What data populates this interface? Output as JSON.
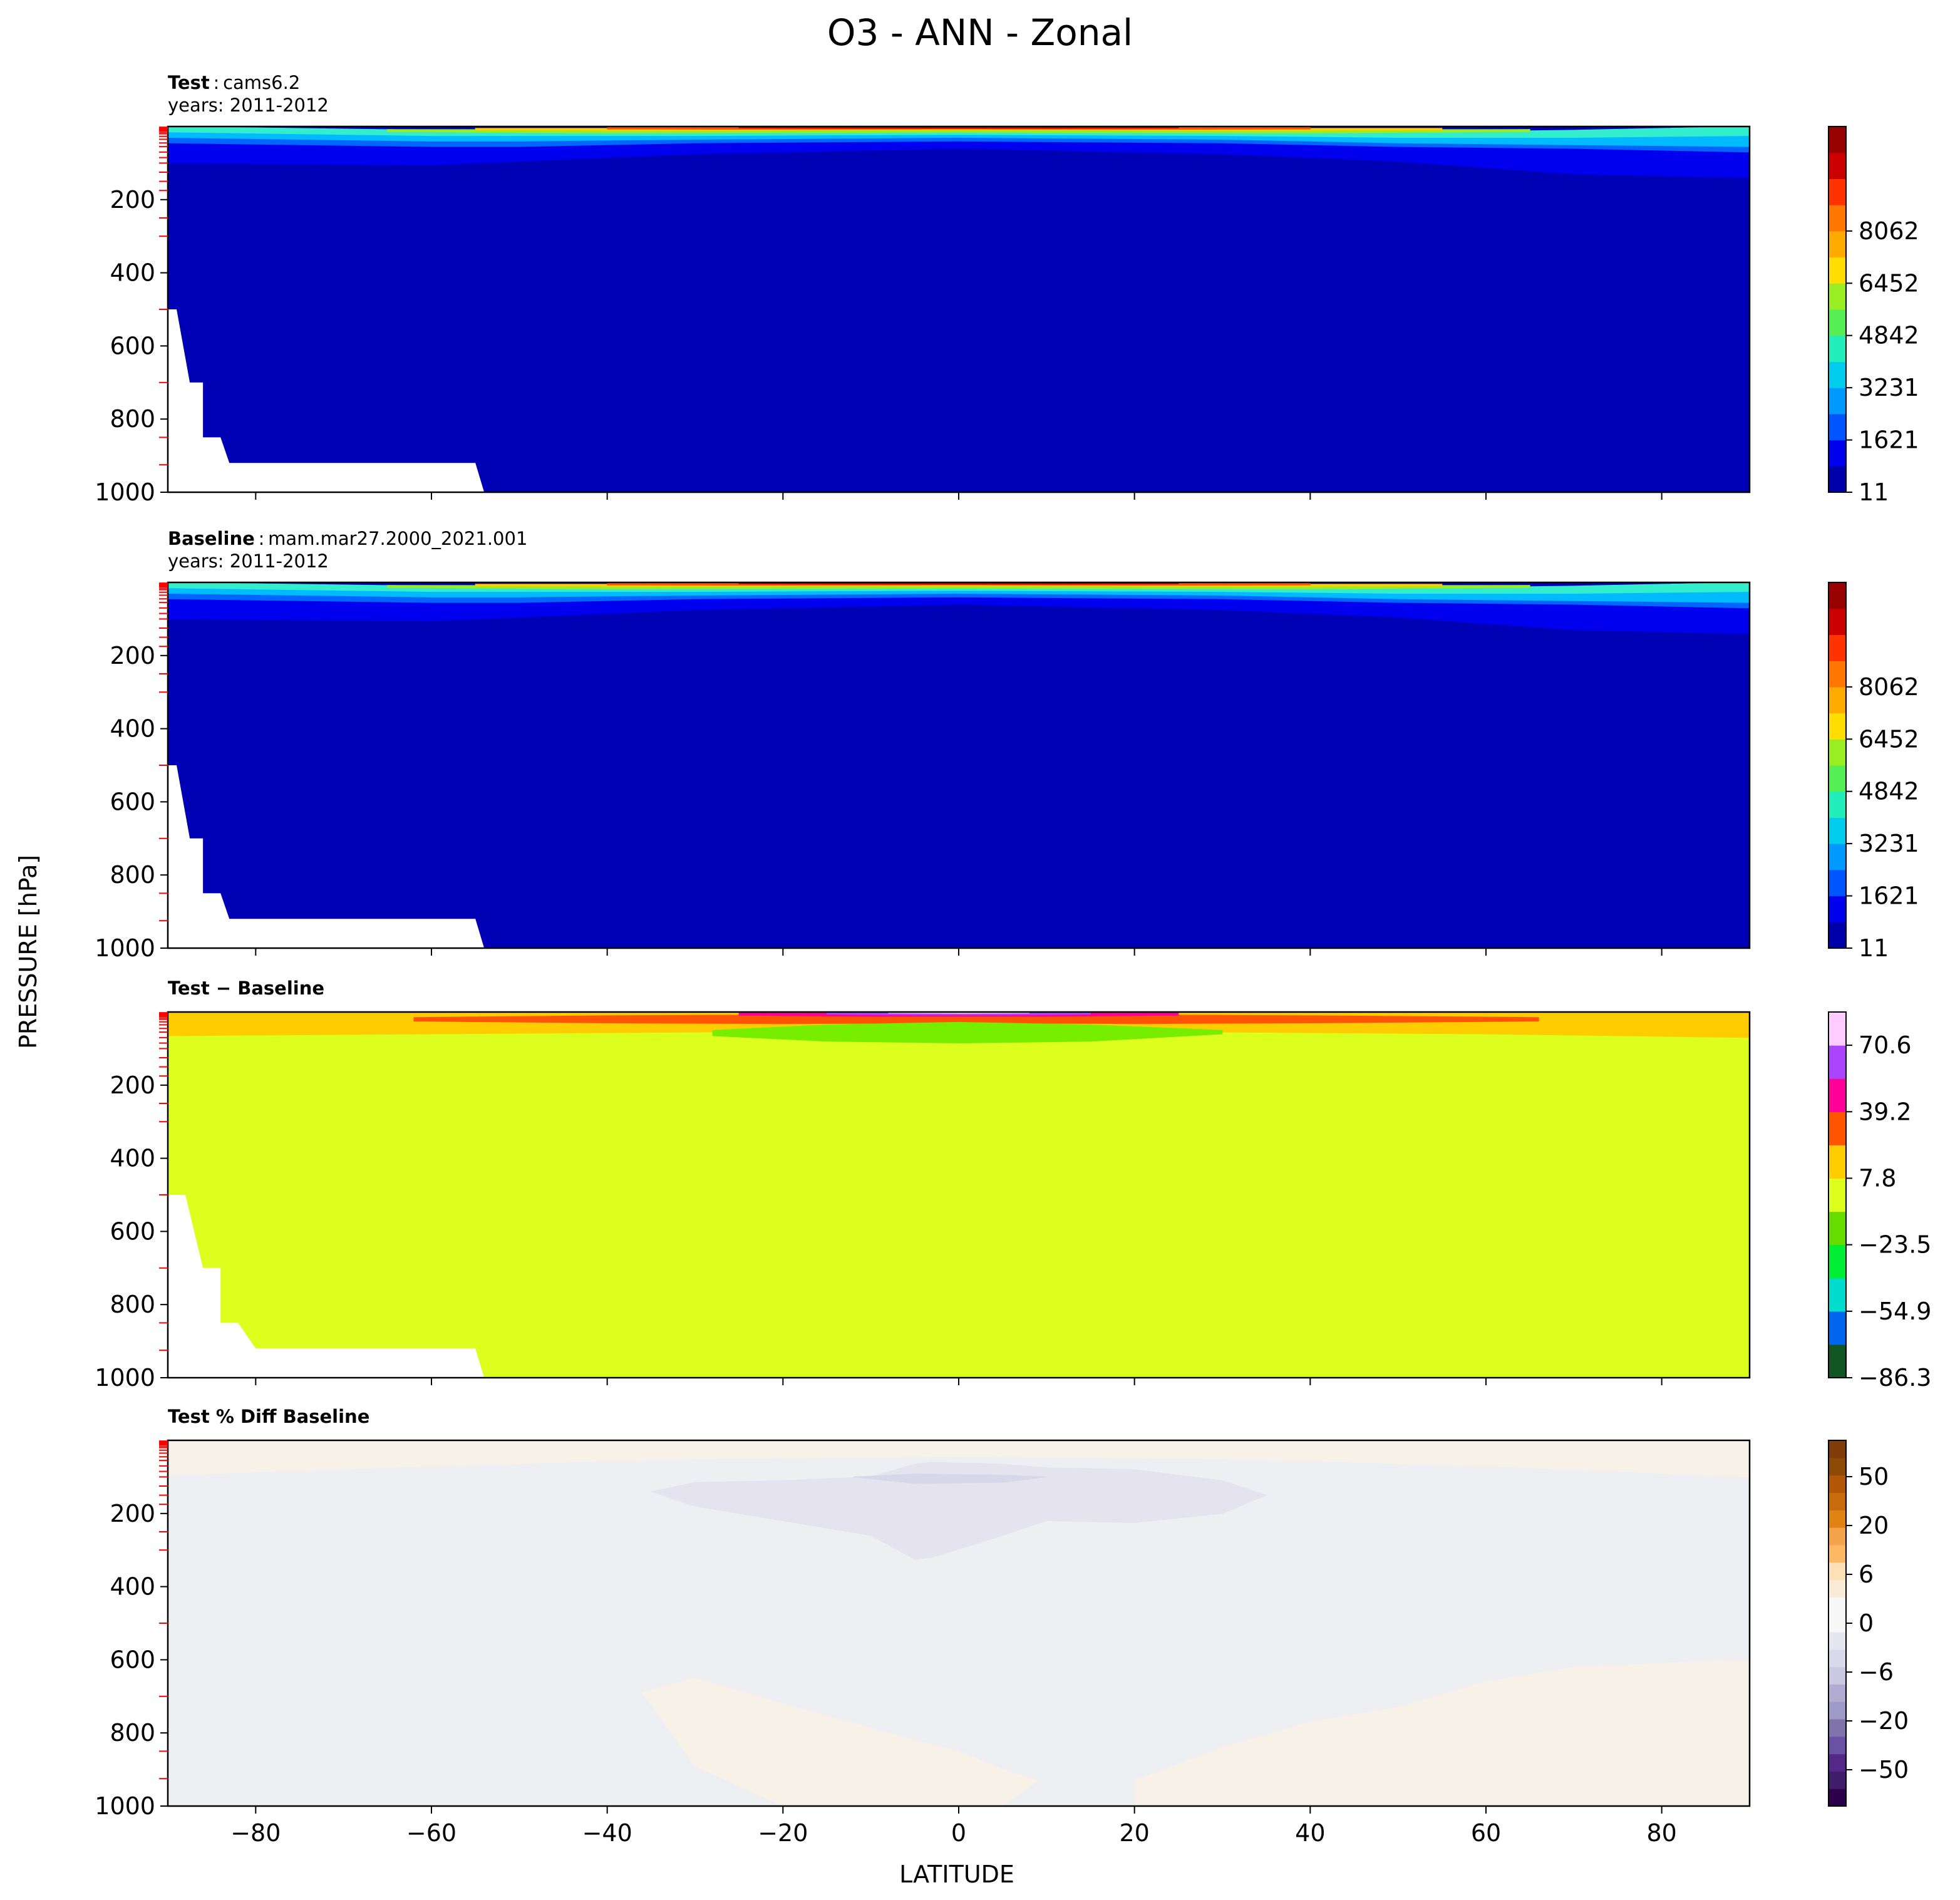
{
  "figure": {
    "title": "O3 - ANN - Zonal",
    "xlabel": "LATITUDE",
    "ylabel": "PRESSURE [hPa]"
  },
  "panels": [
    {
      "title_bold": "Test",
      "title_sep": ":",
      "title_rest": "cams6.2",
      "subtitle": "years: 2011-2012"
    },
    {
      "title_bold": "Baseline",
      "title_sep": ":",
      "title_rest": "mam.mar27.2000_2021.001",
      "subtitle": "years: 2011-2012"
    },
    {
      "title_bold": "Test − Baseline",
      "title_sep": "",
      "title_rest": "",
      "subtitle": ""
    },
    {
      "title_bold": "Test % Diff Baseline",
      "title_sep": "",
      "title_rest": "",
      "subtitle": ""
    }
  ],
  "chart_data": [
    {
      "type": "heatmap",
      "panel": "Test",
      "x_range": [
        -90,
        90
      ],
      "y_range": [
        1000,
        0
      ],
      "x_ticks": [
        -80,
        -60,
        -40,
        -20,
        0,
        20,
        40,
        60,
        80
      ],
      "y_ticks": [
        200,
        400,
        600,
        800,
        1000
      ],
      "colorbar_ticks": [
        "11",
        "1621",
        "3231",
        "4842",
        "6452",
        "8062"
      ],
      "colorbar_colors": [
        "#0000aa",
        "#0000ee",
        "#0055ff",
        "#0099ff",
        "#00ccee",
        "#22eebb",
        "#55ee55",
        "#99ee22",
        "#ffdd00",
        "#ffaa00",
        "#ff7700",
        "#ff3300",
        "#cc0000",
        "#990000"
      ],
      "levels": [
        {
          "color": "#0000b4",
          "lat": [
            -90,
            90
          ],
          "p_top": [
            0,
            0
          ],
          "p_bottom": [
            1000,
            1000
          ]
        },
        {
          "color": "#0000ee",
          "lat": [
            -90,
            -60,
            -50,
            -30,
            0,
            30,
            50,
            70,
            90
          ],
          "top": [
            45,
            55,
            55,
            45,
            40,
            45,
            55,
            60,
            70
          ],
          "bottom": [
            100,
            105,
            95,
            75,
            60,
            75,
            95,
            130,
            140
          ]
        },
        {
          "color": "#0066ff",
          "lat": [
            -90,
            -60,
            -50,
            -30,
            0,
            30,
            50,
            70,
            90
          ],
          "top": [
            30,
            40,
            40,
            35,
            30,
            35,
            45,
            50,
            55
          ],
          "bottom": [
            45,
            55,
            55,
            45,
            40,
            45,
            55,
            60,
            70
          ]
        },
        {
          "color": "#00bbff",
          "lat": [
            -90,
            -60,
            -50,
            -30,
            0,
            30,
            50,
            70,
            90
          ],
          "top": [
            15,
            25,
            25,
            25,
            22,
            25,
            30,
            30,
            25
          ],
          "bottom": [
            30,
            40,
            40,
            35,
            30,
            35,
            45,
            50,
            55
          ]
        },
        {
          "color": "#33eecc",
          "lat": [
            -90,
            -60,
            -50,
            -30,
            0,
            30,
            50,
            70,
            90
          ],
          "top": [
            0,
            10,
            14,
            18,
            16,
            18,
            16,
            10,
            0
          ],
          "bottom": [
            15,
            25,
            25,
            25,
            22,
            25,
            30,
            30,
            25
          ]
        },
        {
          "color": "#99ee22",
          "lat": [
            -65,
            -40,
            -20,
            0,
            20,
            40,
            65
          ],
          "top": [
            8,
            9,
            8,
            8,
            8,
            9,
            8
          ],
          "bottom": [
            14,
            18,
            17,
            16,
            17,
            18,
            14
          ]
        },
        {
          "color": "#ffcc00",
          "lat": [
            -55,
            -30,
            -10,
            0,
            10,
            30,
            55
          ],
          "top": [
            5,
            5,
            4,
            4,
            4,
            5,
            5
          ],
          "bottom": [
            10,
            11,
            9,
            9,
            9,
            11,
            10
          ]
        },
        {
          "color": "#ff5500",
          "lat": [
            -40,
            -20,
            0,
            20,
            40
          ],
          "top": [
            2,
            2,
            2,
            2,
            2
          ],
          "bottom": [
            7,
            8,
            7,
            8,
            7
          ]
        },
        {
          "color": "#cc0000",
          "lat": [
            -25,
            -10,
            10,
            25
          ],
          "top": [
            0,
            0,
            0,
            0
          ],
          "bottom": [
            4,
            5,
            5,
            4
          ]
        }
      ],
      "missing_region": {
        "lat": [
          -90,
          -89,
          -87.5,
          -86,
          -86,
          -84,
          -83,
          -55,
          -54
        ],
        "p": [
          500,
          500,
          700,
          700,
          850,
          850,
          920,
          920,
          1000
        ]
      }
    },
    {
      "type": "heatmap",
      "panel": "Baseline",
      "x_range": [
        -90,
        90
      ],
      "y_range": [
        1000,
        0
      ],
      "x_ticks": [
        -80,
        -60,
        -40,
        -20,
        0,
        20,
        40,
        60,
        80
      ],
      "y_ticks": [
        200,
        400,
        600,
        800,
        1000
      ],
      "colorbar_ticks": [
        "11",
        "1621",
        "3231",
        "4842",
        "6452",
        "8062"
      ],
      "colorbar_colors": [
        "#0000aa",
        "#0000ee",
        "#0055ff",
        "#0099ff",
        "#00ccee",
        "#22eebb",
        "#55ee55",
        "#99ee22",
        "#ffdd00",
        "#ffaa00",
        "#ff7700",
        "#ff3300",
        "#cc0000",
        "#990000"
      ],
      "levels": [
        {
          "color": "#0000b4",
          "lat": [
            -90,
            90
          ],
          "p_top": [
            0,
            0
          ],
          "p_bottom": [
            1000,
            1000
          ]
        },
        {
          "color": "#0000ee",
          "lat": [
            -90,
            -60,
            -50,
            -30,
            0,
            30,
            50,
            70,
            90
          ],
          "top": [
            45,
            55,
            55,
            45,
            40,
            45,
            55,
            60,
            70
          ],
          "bottom": [
            100,
            105,
            95,
            75,
            60,
            75,
            95,
            130,
            140
          ]
        },
        {
          "color": "#0066ff",
          "lat": [
            -90,
            -60,
            -50,
            -30,
            0,
            30,
            50,
            70,
            90
          ],
          "top": [
            30,
            40,
            40,
            35,
            30,
            35,
            45,
            50,
            55
          ],
          "bottom": [
            45,
            55,
            55,
            45,
            40,
            45,
            55,
            60,
            70
          ]
        },
        {
          "color": "#00bbff",
          "lat": [
            -90,
            -60,
            -50,
            -30,
            0,
            30,
            50,
            70,
            90
          ],
          "top": [
            15,
            25,
            25,
            25,
            22,
            25,
            30,
            30,
            25
          ],
          "bottom": [
            30,
            40,
            40,
            35,
            30,
            35,
            45,
            50,
            55
          ]
        },
        {
          "color": "#33eecc",
          "lat": [
            -90,
            -60,
            -50,
            -30,
            0,
            30,
            50,
            70,
            90
          ],
          "top": [
            0,
            10,
            14,
            18,
            16,
            18,
            16,
            10,
            0
          ],
          "bottom": [
            15,
            25,
            25,
            25,
            22,
            25,
            30,
            30,
            25
          ]
        },
        {
          "color": "#99ee22",
          "lat": [
            -65,
            -40,
            -20,
            0,
            20,
            40,
            65
          ],
          "top": [
            8,
            9,
            8,
            8,
            8,
            9,
            8
          ],
          "bottom": [
            14,
            18,
            17,
            16,
            17,
            18,
            14
          ]
        },
        {
          "color": "#ffcc00",
          "lat": [
            -55,
            -30,
            -10,
            0,
            10,
            30,
            55
          ],
          "top": [
            5,
            5,
            4,
            4,
            4,
            5,
            5
          ],
          "bottom": [
            10,
            11,
            9,
            9,
            9,
            11,
            10
          ]
        },
        {
          "color": "#ff5500",
          "lat": [
            -40,
            -20,
            0,
            20,
            40
          ],
          "top": [
            2,
            2,
            2,
            2,
            2
          ],
          "bottom": [
            7,
            8,
            7,
            8,
            7
          ]
        },
        {
          "color": "#cc0000",
          "lat": [
            -25,
            -10,
            10,
            25
          ],
          "top": [
            0,
            0,
            0,
            0
          ],
          "bottom": [
            4,
            5,
            5,
            4
          ]
        }
      ],
      "missing_region": {
        "lat": [
          -90,
          -89,
          -87.5,
          -86,
          -86,
          -84,
          -83,
          -55,
          -54
        ],
        "p": [
          500,
          500,
          700,
          700,
          850,
          850,
          920,
          920,
          1000
        ]
      }
    },
    {
      "type": "heatmap",
      "panel": "Test − Baseline",
      "x_range": [
        -90,
        90
      ],
      "y_range": [
        1000,
        0
      ],
      "x_ticks": [
        -80,
        -60,
        -40,
        -20,
        0,
        20,
        40,
        60,
        80
      ],
      "y_ticks": [
        200,
        400,
        600,
        800,
        1000
      ],
      "colorbar_ticks": [
        "−86.3",
        "−54.9",
        "−23.5",
        "7.8",
        "39.2",
        "70.6"
      ],
      "colorbar_colors": [
        "#115522",
        "#0066ee",
        "#00ddcc",
        "#00ee33",
        "#66dd00",
        "#dcff1e",
        "#ffcc00",
        "#ff5500",
        "#ff0099",
        "#aa44ff",
        "#ffccff"
      ],
      "levels": [
        {
          "color": "#dcff1e",
          "lat": [
            -90,
            90
          ],
          "p_top": [
            0,
            0
          ],
          "p_bottom": [
            1000,
            1000
          ]
        },
        {
          "color": "#ffcc00",
          "lat": [
            -90,
            -60,
            -30,
            0,
            30,
            60,
            90
          ],
          "top": [
            0,
            0,
            0,
            0,
            0,
            0,
            0
          ],
          "bottom": [
            65,
            60,
            55,
            50,
            55,
            60,
            70
          ]
        },
        {
          "color": "#ff5500",
          "lat": [
            -62,
            -40,
            -20,
            0,
            20,
            40,
            66
          ],
          "top": [
            15,
            10,
            8,
            8,
            8,
            10,
            15
          ],
          "bottom": [
            25,
            30,
            32,
            30,
            32,
            30,
            25
          ]
        },
        {
          "color": "#ff0099",
          "lat": [
            -25,
            -10,
            0,
            10,
            25
          ],
          "top": [
            2,
            1,
            1,
            1,
            2
          ],
          "bottom": [
            9,
            12,
            12,
            12,
            9
          ]
        },
        {
          "color": "#aa44ff",
          "lat": [
            -15,
            -5,
            5,
            15
          ],
          "top": [
            0,
            0,
            0,
            0
          ],
          "bottom": [
            6,
            8,
            8,
            6
          ]
        },
        {
          "color": "#ffccff",
          "lat": [
            -8,
            0,
            8
          ],
          "top": [
            0,
            0,
            0
          ],
          "bottom": [
            3,
            4,
            3
          ]
        },
        {
          "color": "#77ee00",
          "lat": [
            -28,
            -15,
            0,
            15,
            30
          ],
          "top": [
            50,
            35,
            28,
            35,
            50
          ],
          "bottom": [
            65,
            80,
            85,
            80,
            60
          ]
        }
      ],
      "missing_region": {
        "lat": [
          -90,
          -88,
          -86,
          -84,
          -84,
          -82,
          -80,
          -55,
          -54
        ],
        "p": [
          500,
          500,
          700,
          700,
          850,
          850,
          920,
          920,
          1000
        ]
      }
    },
    {
      "type": "heatmap",
      "panel": "Test % Diff Baseline",
      "x_range": [
        -90,
        90
      ],
      "y_range": [
        1000,
        0
      ],
      "x_ticks": [
        -80,
        -60,
        -40,
        -20,
        0,
        20,
        40,
        60,
        80
      ],
      "y_ticks": [
        200,
        400,
        600,
        800,
        1000
      ],
      "colorbar_ticks": [
        "−50",
        "−20",
        "−6",
        "0",
        "6",
        "20",
        "50"
      ],
      "colorbar_colors": [
        "#2d004b",
        "#3f1d6a",
        "#542788",
        "#6a51a3",
        "#8073ac",
        "#9e9ac8",
        "#b2abd2",
        "#cbc9e2",
        "#d8daeb",
        "#e6e6f0",
        "#f7f7f7",
        "#f7f7f7",
        "#faebd7",
        "#fee0b6",
        "#fdb863",
        "#f5a24c",
        "#e08214",
        "#c96b0c",
        "#b35806",
        "#8c4a05",
        "#7f3b08"
      ],
      "levels": [
        {
          "color": "#eeeff3",
          "lat": [
            -90,
            90
          ],
          "p_top": [
            0,
            0
          ],
          "p_bottom": [
            1000,
            1000
          ]
        },
        {
          "color": "#f8f1e7",
          "lat": [
            -90,
            -60,
            -30,
            0,
            30,
            60,
            90
          ],
          "top": [
            0,
            0,
            0,
            0,
            0,
            0,
            0
          ],
          "bottom": [
            95,
            70,
            50,
            45,
            50,
            70,
            100
          ]
        },
        {
          "color": "#e4e3ee",
          "lat": [
            -35,
            -30,
            -20,
            -10,
            -5,
            -3,
            5,
            10,
            20,
            30,
            35
          ],
          "top": [
            140,
            115,
            110,
            100,
            65,
            60,
            65,
            75,
            80,
            110,
            150
          ],
          "bottom": [
            140,
            180,
            220,
            260,
            325,
            320,
            260,
            220,
            225,
            200,
            150
          ]
        },
        {
          "color": "#d8d7e8",
          "lat": [
            -12,
            -5,
            5,
            10
          ],
          "top": [
            100,
            92,
            95,
            100
          ],
          "bottom": [
            100,
            118,
            115,
            100
          ]
        },
        {
          "color": "#f8f1e7",
          "lat": [
            -36,
            -30,
            -20,
            -5,
            0,
            5,
            9
          ],
          "top": [
            690,
            650,
            720,
            820,
            850,
            900,
            930
          ],
          "bottom": [
            690,
            890,
            1000,
            1000,
            1000,
            1000,
            930
          ]
        },
        {
          "color": "#f8f1e7",
          "lat": [
            20,
            30,
            40,
            50,
            60,
            70,
            80,
            90
          ],
          "top": [
            930,
            840,
            770,
            730,
            660,
            620,
            610,
            600
          ],
          "bottom": [
            1000,
            1000,
            1000,
            1000,
            1000,
            1000,
            1000,
            1000
          ]
        }
      ],
      "missing_region": null
    }
  ]
}
